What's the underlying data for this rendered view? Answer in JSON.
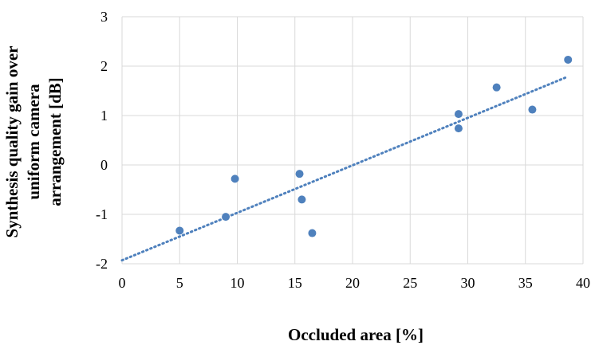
{
  "chart_data": {
    "type": "scatter",
    "title": "",
    "xlabel": "Occluded area [%]",
    "ylabel_lines": [
      "Synthesis quality gain over",
      "uniform camera",
      "arrangement [dB]"
    ],
    "xlim": [
      0,
      40
    ],
    "ylim": [
      -2,
      3
    ],
    "x_ticks": [
      0,
      5,
      10,
      15,
      20,
      25,
      30,
      35,
      40
    ],
    "y_ticks": [
      -2,
      -1,
      0,
      1,
      2,
      3
    ],
    "x_tick_labels": [
      "0",
      "5",
      "10",
      "15",
      "20",
      "25",
      "30",
      "35",
      "40"
    ],
    "y_tick_labels": [
      "-2",
      "-1",
      "0",
      "1",
      "2",
      "3"
    ],
    "grid": true,
    "legend": "none",
    "series": [
      {
        "x": [
          5.0,
          9.0,
          9.8,
          15.4,
          15.6,
          16.5,
          29.2,
          29.2,
          32.5,
          35.6,
          38.7
        ],
        "y": [
          -1.33,
          -1.05,
          -0.28,
          -0.18,
          -0.7,
          -1.38,
          1.03,
          0.74,
          1.57,
          1.12,
          2.13
        ],
        "color": "#4f81bd"
      }
    ],
    "trendline": {
      "type": "linear",
      "style": "dotted",
      "color": "#4f81bd",
      "x": [
        0,
        38.7
      ],
      "y": [
        -1.93,
        1.79
      ]
    }
  }
}
